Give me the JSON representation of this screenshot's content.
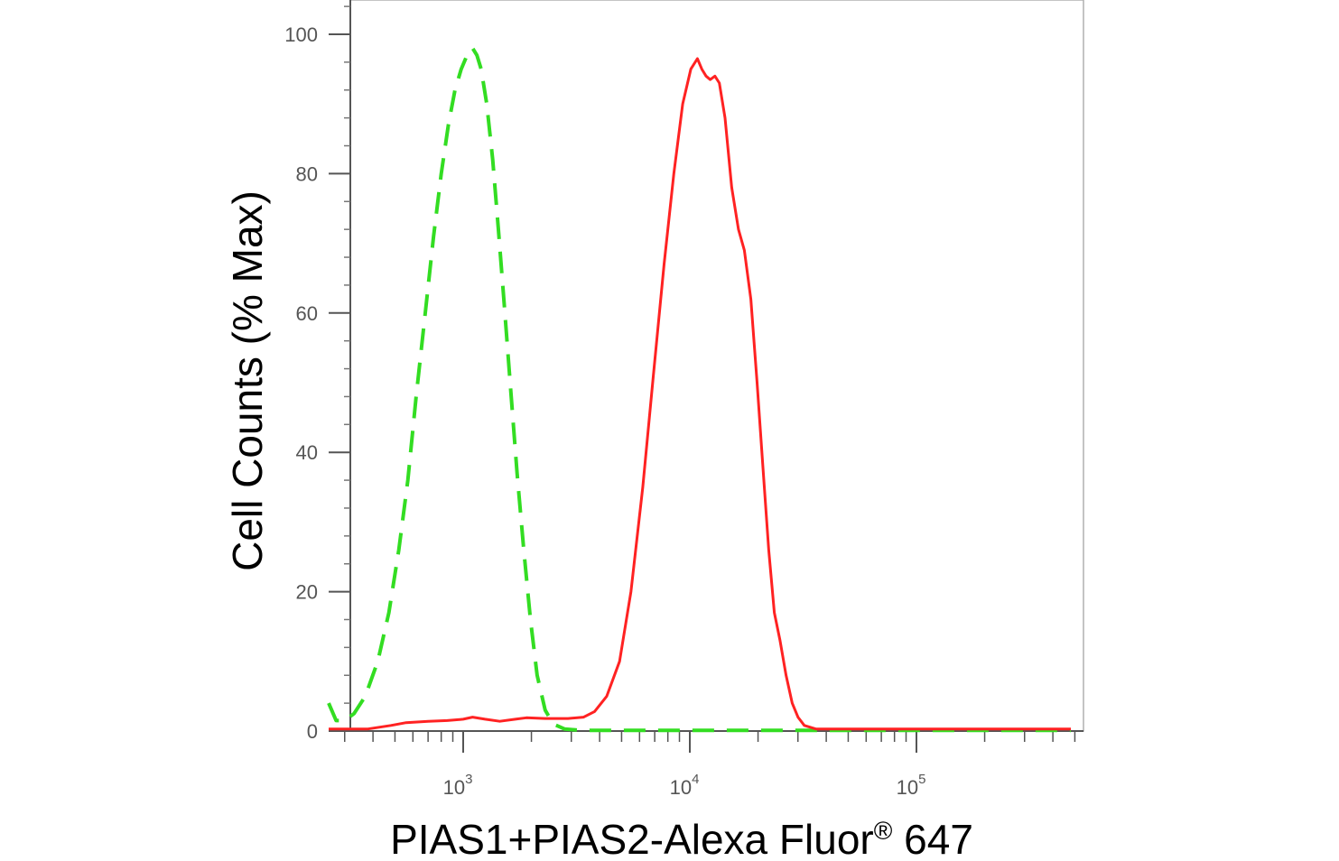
{
  "chart_data": {
    "type": "line",
    "title": "",
    "xlabel": "PIAS1+PIAS2-Alexa Fluor",
    "xlabel_superscript": "®",
    "xlabel_suffix": " 647",
    "ylabel": "Cell Counts (% Max)",
    "x_scale": "log",
    "xlim": [
      250,
      500000
    ],
    "ylim": [
      0,
      105
    ],
    "x_ticks": [
      {
        "value": 1000,
        "base": "10",
        "exp": "3"
      },
      {
        "value": 10000,
        "base": "10",
        "exp": "4"
      },
      {
        "value": 100000,
        "base": "10",
        "exp": "5"
      }
    ],
    "y_ticks": [
      0,
      20,
      40,
      60,
      80,
      100
    ],
    "grid": false,
    "legend": "none",
    "series": [
      {
        "style": "dashed",
        "color": "#33dd22",
        "points": [
          [
            255,
            4
          ],
          [
            275,
            1.5
          ],
          [
            300,
            1.5
          ],
          [
            330,
            2.5
          ],
          [
            370,
            5
          ],
          [
            420,
            10
          ],
          [
            470,
            17
          ],
          [
            520,
            26
          ],
          [
            570,
            36
          ],
          [
            620,
            48
          ],
          [
            680,
            60
          ],
          [
            740,
            71
          ],
          [
            800,
            80
          ],
          [
            860,
            87
          ],
          [
            920,
            92
          ],
          [
            980,
            95
          ],
          [
            1040,
            97
          ],
          [
            1100,
            98
          ],
          [
            1150,
            97
          ],
          [
            1200,
            95
          ],
          [
            1270,
            90
          ],
          [
            1350,
            82
          ],
          [
            1430,
            72
          ],
          [
            1520,
            61
          ],
          [
            1620,
            49
          ],
          [
            1730,
            37
          ],
          [
            1850,
            26
          ],
          [
            1980,
            16
          ],
          [
            2120,
            8
          ],
          [
            2300,
            3
          ],
          [
            2500,
            1
          ],
          [
            2800,
            0.3
          ],
          [
            3300,
            0.1
          ],
          [
            5000,
            0.1
          ],
          [
            20000,
            0.1
          ],
          [
            100000,
            0.1
          ],
          [
            480000,
            0.1
          ]
        ]
      },
      {
        "style": "solid",
        "color": "#ff2222",
        "points": [
          [
            255,
            0.3
          ],
          [
            380,
            0.3
          ],
          [
            480,
            0.8
          ],
          [
            560,
            1.2
          ],
          [
            700,
            1.4
          ],
          [
            850,
            1.5
          ],
          [
            1000,
            1.7
          ],
          [
            1100,
            2.0
          ],
          [
            1250,
            1.7
          ],
          [
            1450,
            1.4
          ],
          [
            1700,
            1.7
          ],
          [
            1900,
            1.9
          ],
          [
            2300,
            1.8
          ],
          [
            2900,
            1.8
          ],
          [
            3400,
            2.0
          ],
          [
            3800,
            2.8
          ],
          [
            4300,
            5
          ],
          [
            4900,
            10
          ],
          [
            5500,
            20
          ],
          [
            6200,
            35
          ],
          [
            6900,
            51
          ],
          [
            7700,
            67
          ],
          [
            8500,
            80
          ],
          [
            9300,
            90
          ],
          [
            10100,
            95
          ],
          [
            10800,
            96.5
          ],
          [
            11300,
            95
          ],
          [
            11800,
            94
          ],
          [
            12300,
            93.5
          ],
          [
            12900,
            94
          ],
          [
            13500,
            93
          ],
          [
            14300,
            88
          ],
          [
            15300,
            78
          ],
          [
            16400,
            72
          ],
          [
            17400,
            69
          ],
          [
            18600,
            62
          ],
          [
            19800,
            50
          ],
          [
            21000,
            38
          ],
          [
            22300,
            26
          ],
          [
            23600,
            17
          ],
          [
            25000,
            13
          ],
          [
            26600,
            8
          ],
          [
            28300,
            4
          ],
          [
            30000,
            2
          ],
          [
            32000,
            0.8
          ],
          [
            36000,
            0.3
          ],
          [
            60000,
            0.3
          ],
          [
            150000,
            0.3
          ],
          [
            480000,
            0.3
          ]
        ]
      }
    ]
  }
}
